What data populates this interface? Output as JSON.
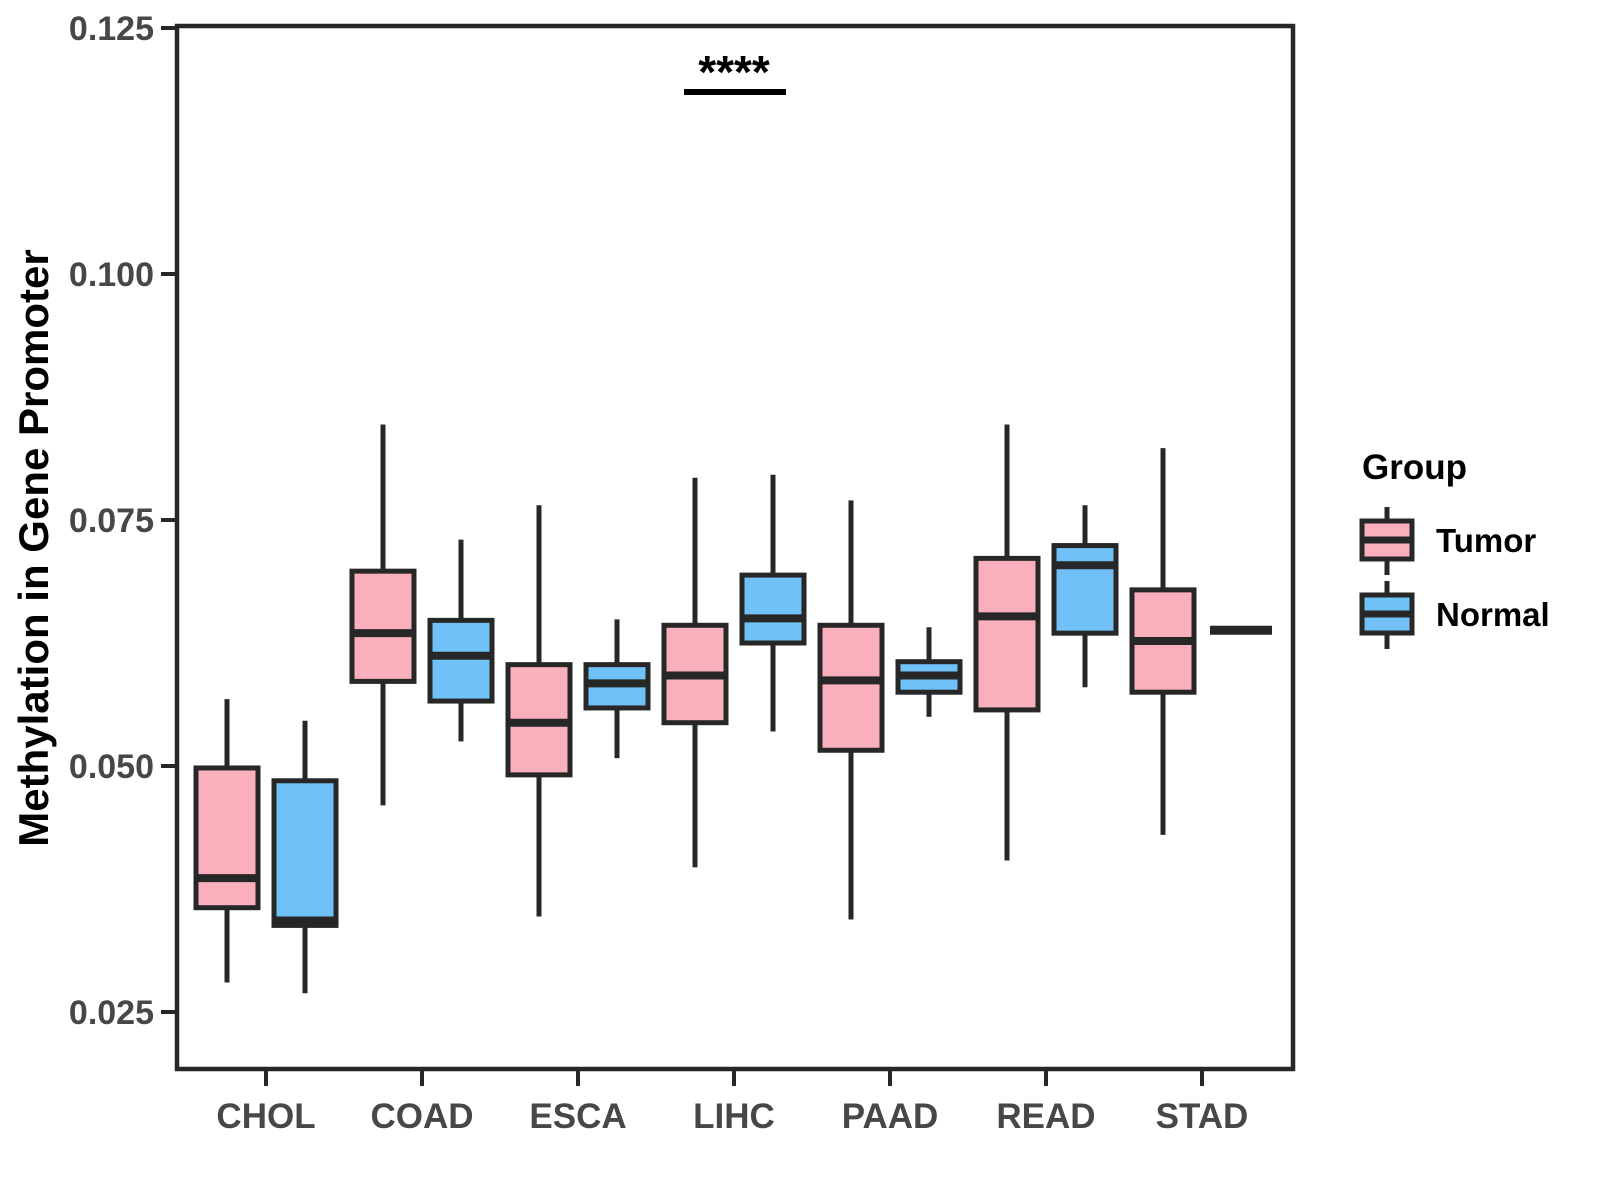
{
  "chart_data": {
    "type": "boxplot",
    "title": "",
    "xlabel": "",
    "ylabel": "Methylation in Gene Promoter",
    "grid": false,
    "legend_position": "right",
    "ylim": [
      0.019,
      0.1254
    ],
    "yticks": [
      {
        "label": "0.125",
        "value": 0.125
      },
      {
        "label": "0.100",
        "value": 0.1
      },
      {
        "label": "0.075",
        "value": 0.075
      },
      {
        "label": "0.050",
        "value": 0.05
      },
      {
        "label": "0.025",
        "value": 0.025
      }
    ],
    "categories": [
      "CHOL",
      "COAD",
      "ESCA",
      "LIHC",
      "PAAD",
      "READ",
      "STAD"
    ],
    "series": [
      {
        "name": "Tumor",
        "fill": "#FAAFBD",
        "boxes": [
          {
            "min": 0.028,
            "q1": 0.0356,
            "median": 0.0386,
            "q3": 0.0498,
            "max": 0.0568
          },
          {
            "min": 0.046,
            "q1": 0.0586,
            "median": 0.0635,
            "q3": 0.0698,
            "max": 0.0847
          },
          {
            "min": 0.0347,
            "q1": 0.0491,
            "median": 0.0544,
            "q3": 0.0603,
            "max": 0.0765
          },
          {
            "min": 0.0397,
            "q1": 0.0544,
            "median": 0.0592,
            "q3": 0.0643,
            "max": 0.0793
          },
          {
            "min": 0.0344,
            "q1": 0.0516,
            "median": 0.0587,
            "q3": 0.0643,
            "max": 0.077
          },
          {
            "min": 0.0404,
            "q1": 0.0557,
            "median": 0.0652,
            "q3": 0.0711,
            "max": 0.0847
          },
          {
            "min": 0.043,
            "q1": 0.0575,
            "median": 0.0627,
            "q3": 0.0679,
            "max": 0.0823
          }
        ]
      },
      {
        "name": "Normal",
        "fill": "#70C1F7",
        "boxes": [
          {
            "min": 0.0269,
            "q1": 0.0338,
            "median": 0.0343,
            "q3": 0.0485,
            "max": 0.0546
          },
          {
            "min": 0.0525,
            "q1": 0.0566,
            "median": 0.0612,
            "q3": 0.0648,
            "max": 0.073
          },
          {
            "min": 0.0508,
            "q1": 0.0559,
            "median": 0.0584,
            "q3": 0.0603,
            "max": 0.0649
          },
          {
            "min": 0.0535,
            "q1": 0.0625,
            "median": 0.065,
            "q3": 0.0694,
            "max": 0.0796
          },
          {
            "min": 0.055,
            "q1": 0.0575,
            "median": 0.0592,
            "q3": 0.0606,
            "max": 0.0641
          },
          {
            "min": 0.058,
            "q1": 0.0635,
            "median": 0.0704,
            "q3": 0.0724,
            "max": 0.0765
          },
          {
            "min": 0.0638,
            "q1": 0.0638,
            "median": 0.0638,
            "q3": 0.0638,
            "max": 0.0638
          }
        ]
      }
    ],
    "annotation": {
      "text": "****",
      "category": "LIHC"
    }
  },
  "legend": {
    "title": "Group",
    "entries": [
      {
        "label": "Tumor",
        "fill": "#FAAFBD"
      },
      {
        "label": "Normal",
        "fill": "#70C1F7"
      }
    ]
  },
  "colors": {
    "stroke": "#272727",
    "axis_text": "#474747",
    "text": "#000000",
    "background": "#ffffff"
  }
}
